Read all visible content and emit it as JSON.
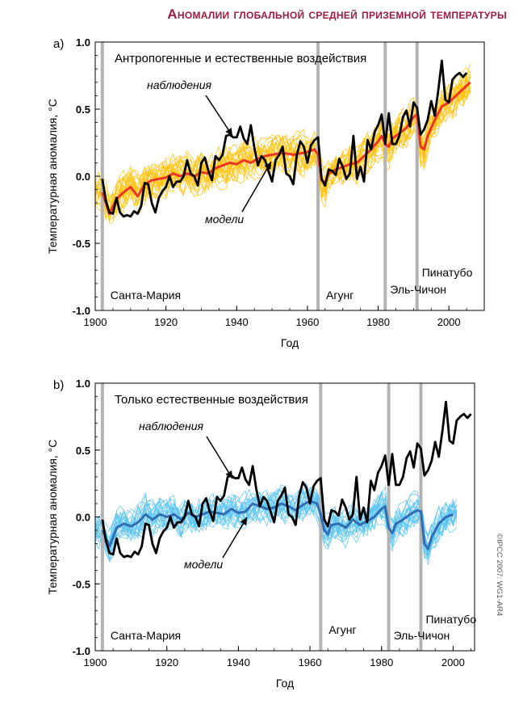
{
  "figure_title": "Аномалии глобальной средней приземной температуры",
  "copyright": "©IPCC 2007: WG1-AR4",
  "colors": {
    "title": "#9b1c3c",
    "observations": "#000000",
    "ensemble_a": "#ffc20e",
    "model_mean_a": "#ee3524",
    "ensemble_b": "#5bc4ef",
    "model_mean_b": "#2f6db5",
    "volcano_bar": "#b3b3b3"
  },
  "chart_data": [
    {
      "panel": "a)",
      "type": "line",
      "title": "Антропогенные и естественные воздействия",
      "xlabel": "Год",
      "ylabel": "Температурная аномалия, °C",
      "xlim": [
        1900,
        2010
      ],
      "ylim": [
        -1.0,
        1.0
      ],
      "xticks": [
        1900,
        1920,
        1940,
        1960,
        1980,
        2000
      ],
      "yticks": [
        -1.0,
        -0.5,
        0.0,
        0.5,
        1.0
      ],
      "ytick_labels": [
        "-1.0",
        "-0.5",
        "0.0",
        "0.5",
        "1.0"
      ],
      "annotations": {
        "observations": "наблюдения",
        "models": "модели"
      },
      "volcanoes": [
        {
          "name": "Санта-Мария",
          "year": 1902
        },
        {
          "name": "Агунг",
          "year": 1963
        },
        {
          "name": "Эль-Чичон",
          "year": 1982
        },
        {
          "name": "Пинатубо",
          "year": 1991
        }
      ],
      "series": [
        {
          "role": "observations",
          "x": [
            1902,
            1903,
            1904,
            1905,
            1906,
            1907,
            1908,
            1909,
            1910,
            1911,
            1912,
            1913,
            1914,
            1915,
            1916,
            1917,
            1918,
            1919,
            1920,
            1921,
            1922,
            1923,
            1924,
            1925,
            1926,
            1927,
            1928,
            1929,
            1930,
            1931,
            1932,
            1933,
            1934,
            1935,
            1936,
            1937,
            1938,
            1939,
            1940,
            1941,
            1942,
            1943,
            1944,
            1945,
            1946,
            1947,
            1948,
            1949,
            1950,
            1951,
            1952,
            1953,
            1954,
            1955,
            1956,
            1957,
            1958,
            1959,
            1960,
            1961,
            1962,
            1963,
            1964,
            1965,
            1966,
            1967,
            1968,
            1969,
            1970,
            1971,
            1972,
            1973,
            1974,
            1975,
            1976,
            1977,
            1978,
            1979,
            1980,
            1981,
            1982,
            1983,
            1984,
            1985,
            1986,
            1987,
            1988,
            1989,
            1990,
            1991,
            1992,
            1993,
            1994,
            1995,
            1996,
            1997,
            1998,
            1999,
            2000,
            2001,
            2002,
            2003,
            2004,
            2005
          ],
          "y": [
            -0.02,
            -0.18,
            -0.27,
            -0.28,
            -0.16,
            -0.27,
            -0.3,
            -0.29,
            -0.3,
            -0.26,
            -0.28,
            -0.22,
            -0.05,
            -0.06,
            -0.2,
            -0.27,
            -0.16,
            -0.11,
            -0.08,
            0.0,
            -0.08,
            -0.04,
            -0.04,
            0.0,
            0.12,
            0.02,
            0.0,
            -0.07,
            0.1,
            0.14,
            0.04,
            -0.03,
            0.15,
            0.12,
            0.16,
            0.3,
            0.31,
            0.29,
            0.29,
            0.37,
            0.28,
            0.24,
            0.38,
            0.21,
            0.08,
            0.15,
            0.12,
            0.04,
            -0.04,
            0.12,
            0.16,
            0.22,
            0.02,
            0.0,
            -0.06,
            0.16,
            0.26,
            0.22,
            0.1,
            0.23,
            0.27,
            0.29,
            -0.02,
            -0.07,
            0.05,
            0.04,
            0.01,
            0.13,
            0.07,
            -0.02,
            0.02,
            0.3,
            -0.02,
            0.07,
            -0.04,
            0.27,
            0.2,
            0.33,
            0.38,
            0.46,
            0.24,
            0.47,
            0.24,
            0.24,
            0.3,
            0.44,
            0.49,
            0.37,
            0.55,
            0.51,
            0.31,
            0.35,
            0.42,
            0.56,
            0.45,
            0.64,
            0.86,
            0.57,
            0.55,
            0.72,
            0.75,
            0.77,
            0.74,
            0.77
          ]
        },
        {
          "role": "models",
          "x": [
            1902,
            1904,
            1906,
            1908,
            1910,
            1912,
            1914,
            1916,
            1918,
            1920,
            1922,
            1924,
            1926,
            1928,
            1930,
            1932,
            1934,
            1936,
            1938,
            1940,
            1942,
            1944,
            1946,
            1948,
            1950,
            1952,
            1954,
            1956,
            1958,
            1960,
            1962,
            1963,
            1964,
            1965,
            1966,
            1968,
            1970,
            1972,
            1974,
            1976,
            1978,
            1980,
            1981,
            1982,
            1983,
            1984,
            1986,
            1988,
            1990,
            1991,
            1992,
            1993,
            1994,
            1996,
            1998,
            2000,
            2002,
            2004,
            2006
          ],
          "y": [
            -0.12,
            -0.28,
            -0.17,
            -0.12,
            -0.08,
            -0.15,
            -0.06,
            -0.03,
            -0.02,
            -0.01,
            0.02,
            0.0,
            0.02,
            0.0,
            0.03,
            0.02,
            0.06,
            0.08,
            0.1,
            0.09,
            0.12,
            0.1,
            0.13,
            0.15,
            0.16,
            0.17,
            0.17,
            0.16,
            0.17,
            0.18,
            0.2,
            0.16,
            -0.03,
            -0.05,
            0.02,
            0.05,
            0.07,
            0.09,
            0.1,
            0.15,
            0.2,
            0.26,
            0.3,
            0.24,
            0.22,
            0.28,
            0.32,
            0.36,
            0.44,
            0.46,
            0.22,
            0.2,
            0.3,
            0.42,
            0.52,
            0.55,
            0.6,
            0.65,
            0.7
          ]
        }
      ]
    },
    {
      "panel": "b)",
      "type": "line",
      "title": "Только естественные воздействия",
      "xlabel": "Год",
      "ylabel": "Температурная аномалия, °C",
      "xlim": [
        1900,
        2006
      ],
      "ylim": [
        -1.0,
        1.0
      ],
      "xticks": [
        1900,
        1920,
        1940,
        1960,
        1980,
        2000
      ],
      "yticks": [
        -1.0,
        -0.5,
        0.0,
        0.5,
        1.0
      ],
      "ytick_labels": [
        "-1.0",
        "-0.5",
        "0.0",
        "0.5",
        "1.0"
      ],
      "annotations": {
        "observations": "наблюдения",
        "models": "модели"
      },
      "volcanoes": [
        {
          "name": "Санта-Мария",
          "year": 1902
        },
        {
          "name": "Агунг",
          "year": 1963
        },
        {
          "name": "Эль-Чичон",
          "year": 1982
        },
        {
          "name": "Пинатубо",
          "year": 1991
        }
      ],
      "series": [
        {
          "role": "observations",
          "x": [
            1902,
            1903,
            1904,
            1905,
            1906,
            1907,
            1908,
            1909,
            1910,
            1911,
            1912,
            1913,
            1914,
            1915,
            1916,
            1917,
            1918,
            1919,
            1920,
            1921,
            1922,
            1923,
            1924,
            1925,
            1926,
            1927,
            1928,
            1929,
            1930,
            1931,
            1932,
            1933,
            1934,
            1935,
            1936,
            1937,
            1938,
            1939,
            1940,
            1941,
            1942,
            1943,
            1944,
            1945,
            1946,
            1947,
            1948,
            1949,
            1950,
            1951,
            1952,
            1953,
            1954,
            1955,
            1956,
            1957,
            1958,
            1959,
            1960,
            1961,
            1962,
            1963,
            1964,
            1965,
            1966,
            1967,
            1968,
            1969,
            1970,
            1971,
            1972,
            1973,
            1974,
            1975,
            1976,
            1977,
            1978,
            1979,
            1980,
            1981,
            1982,
            1983,
            1984,
            1985,
            1986,
            1987,
            1988,
            1989,
            1990,
            1991,
            1992,
            1993,
            1994,
            1995,
            1996,
            1997,
            1998,
            1999,
            2000,
            2001,
            2002,
            2003,
            2004,
            2005
          ],
          "y": [
            -0.02,
            -0.18,
            -0.27,
            -0.28,
            -0.16,
            -0.27,
            -0.3,
            -0.29,
            -0.3,
            -0.26,
            -0.28,
            -0.22,
            -0.05,
            -0.06,
            -0.2,
            -0.27,
            -0.16,
            -0.11,
            -0.08,
            0.0,
            -0.08,
            -0.04,
            -0.04,
            0.0,
            0.12,
            0.02,
            0.0,
            -0.07,
            0.1,
            0.14,
            0.04,
            -0.03,
            0.15,
            0.12,
            0.16,
            0.3,
            0.31,
            0.29,
            0.29,
            0.37,
            0.28,
            0.24,
            0.38,
            0.21,
            0.08,
            0.15,
            0.12,
            0.04,
            -0.04,
            0.12,
            0.16,
            0.22,
            0.02,
            0.0,
            -0.06,
            0.16,
            0.26,
            0.22,
            0.1,
            0.23,
            0.27,
            0.29,
            -0.02,
            -0.07,
            0.05,
            0.04,
            0.01,
            0.13,
            0.07,
            -0.02,
            0.02,
            0.3,
            -0.02,
            0.07,
            -0.04,
            0.27,
            0.2,
            0.33,
            0.38,
            0.46,
            0.24,
            0.47,
            0.24,
            0.24,
            0.3,
            0.44,
            0.49,
            0.37,
            0.55,
            0.51,
            0.31,
            0.35,
            0.42,
            0.56,
            0.45,
            0.64,
            0.86,
            0.57,
            0.55,
            0.72,
            0.75,
            0.77,
            0.74,
            0.77
          ]
        },
        {
          "role": "models",
          "x": [
            1902,
            1904,
            1906,
            1908,
            1910,
            1912,
            1914,
            1916,
            1918,
            1920,
            1922,
            1924,
            1926,
            1928,
            1930,
            1932,
            1934,
            1936,
            1938,
            1940,
            1942,
            1944,
            1946,
            1948,
            1950,
            1952,
            1954,
            1956,
            1958,
            1960,
            1962,
            1963,
            1964,
            1965,
            1966,
            1968,
            1970,
            1972,
            1974,
            1976,
            1978,
            1980,
            1981,
            1982,
            1983,
            1984,
            1986,
            1988,
            1990,
            1991,
            1992,
            1993,
            1994,
            1996,
            1998,
            2000
          ],
          "y": [
            -0.1,
            -0.22,
            -0.08,
            -0.05,
            -0.07,
            -0.04,
            0.02,
            -0.02,
            0.02,
            0.0,
            0.02,
            -0.02,
            0.03,
            0.0,
            0.02,
            0.04,
            0.03,
            0.02,
            0.06,
            0.03,
            0.04,
            0.1,
            0.08,
            0.06,
            0.07,
            0.1,
            0.08,
            0.05,
            0.09,
            0.12,
            0.1,
            0.02,
            -0.1,
            -0.13,
            -0.06,
            -0.05,
            -0.08,
            -0.02,
            -0.06,
            -0.03,
            0.0,
            0.06,
            0.08,
            -0.08,
            -0.12,
            -0.05,
            -0.02,
            0.02,
            0.05,
            0.04,
            -0.2,
            -0.24,
            -0.15,
            -0.05,
            0.0,
            0.02
          ]
        }
      ]
    }
  ]
}
